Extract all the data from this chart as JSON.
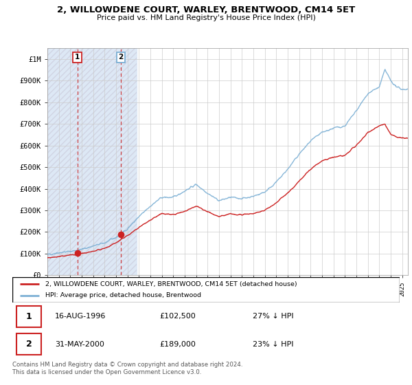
{
  "title": "2, WILLOWDENE COURT, WARLEY, BRENTWOOD, CM14 5ET",
  "subtitle": "Price paid vs. HM Land Registry's House Price Index (HPI)",
  "legend_line1": "2, WILLOWDENE COURT, WARLEY, BRENTWOOD, CM14 5ET (detached house)",
  "legend_line2": "HPI: Average price, detached house, Brentwood",
  "transaction1_date": "16-AUG-1996",
  "transaction1_price": "£102,500",
  "transaction1_hpi": "27% ↓ HPI",
  "transaction1_year": 1996.62,
  "transaction1_value": 102500,
  "transaction2_date": "31-MAY-2000",
  "transaction2_price": "£189,000",
  "transaction2_hpi": "23% ↓ HPI",
  "transaction2_year": 2000.41,
  "transaction2_value": 189000,
  "footer": "Contains HM Land Registry data © Crown copyright and database right 2024.\nThis data is licensed under the Open Government Licence v3.0.",
  "hpi_color": "#7bafd4",
  "price_color": "#cc2222",
  "shade_color": "#dde8f5",
  "hatch_color": "#c8c8d8",
  "ylim_min": 0,
  "ylim_max": 1050000,
  "xmin": 1994,
  "xmax": 2025.5,
  "hpi_anchor_points": [
    [
      1994.0,
      95000
    ],
    [
      1995.0,
      105000
    ],
    [
      1996.0,
      110000
    ],
    [
      1997.0,
      120000
    ],
    [
      1998.0,
      135000
    ],
    [
      1999.0,
      150000
    ],
    [
      2000.0,
      175000
    ],
    [
      2001.0,
      215000
    ],
    [
      2002.0,
      270000
    ],
    [
      2003.0,
      320000
    ],
    [
      2004.0,
      360000
    ],
    [
      2005.0,
      360000
    ],
    [
      2006.0,
      390000
    ],
    [
      2007.0,
      420000
    ],
    [
      2008.0,
      380000
    ],
    [
      2009.0,
      345000
    ],
    [
      2010.0,
      360000
    ],
    [
      2011.0,
      355000
    ],
    [
      2012.0,
      365000
    ],
    [
      2013.0,
      385000
    ],
    [
      2014.0,
      430000
    ],
    [
      2015.0,
      490000
    ],
    [
      2016.0,
      560000
    ],
    [
      2017.0,
      620000
    ],
    [
      2018.0,
      660000
    ],
    [
      2019.0,
      680000
    ],
    [
      2020.0,
      690000
    ],
    [
      2021.0,
      760000
    ],
    [
      2022.0,
      840000
    ],
    [
      2023.0,
      870000
    ],
    [
      2023.5,
      950000
    ],
    [
      2024.0,
      900000
    ],
    [
      2024.5,
      870000
    ],
    [
      2025.0,
      860000
    ]
  ],
  "price_anchor_points": [
    [
      1994.0,
      80000
    ],
    [
      1995.0,
      88000
    ],
    [
      1996.0,
      92000
    ],
    [
      1997.0,
      100000
    ],
    [
      1998.0,
      110000
    ],
    [
      1999.0,
      125000
    ],
    [
      2000.0,
      150000
    ],
    [
      2001.0,
      185000
    ],
    [
      2002.0,
      220000
    ],
    [
      2003.0,
      255000
    ],
    [
      2004.0,
      285000
    ],
    [
      2005.0,
      280000
    ],
    [
      2006.0,
      295000
    ],
    [
      2007.0,
      320000
    ],
    [
      2008.0,
      295000
    ],
    [
      2009.0,
      270000
    ],
    [
      2010.0,
      285000
    ],
    [
      2011.0,
      280000
    ],
    [
      2012.0,
      285000
    ],
    [
      2013.0,
      300000
    ],
    [
      2014.0,
      335000
    ],
    [
      2015.0,
      380000
    ],
    [
      2016.0,
      435000
    ],
    [
      2017.0,
      490000
    ],
    [
      2018.0,
      530000
    ],
    [
      2019.0,
      545000
    ],
    [
      2020.0,
      555000
    ],
    [
      2021.0,
      600000
    ],
    [
      2022.0,
      660000
    ],
    [
      2023.0,
      690000
    ],
    [
      2023.5,
      700000
    ],
    [
      2024.0,
      650000
    ],
    [
      2024.5,
      640000
    ],
    [
      2025.0,
      635000
    ]
  ]
}
